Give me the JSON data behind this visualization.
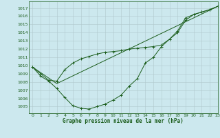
{
  "title": "Graphe pression niveau de la mer (hPa)",
  "background_color": "#cce8ee",
  "grid_color": "#b0c8cc",
  "line_color": "#1a5c1a",
  "text_color": "#1a5c1a",
  "xlim": [
    -0.5,
    23
  ],
  "ylim": [
    1004.2,
    1017.8
  ],
  "yticks": [
    1005,
    1006,
    1007,
    1008,
    1009,
    1010,
    1011,
    1012,
    1013,
    1014,
    1015,
    1016,
    1017
  ],
  "xticks": [
    0,
    1,
    2,
    3,
    4,
    5,
    6,
    7,
    8,
    9,
    10,
    11,
    12,
    13,
    14,
    15,
    16,
    17,
    18,
    19,
    20,
    21,
    22,
    23
  ],
  "series1_x": [
    0,
    1,
    2,
    3,
    4,
    5,
    6,
    7,
    8,
    9,
    10,
    11,
    12,
    13,
    14,
    15,
    16,
    17,
    18,
    19,
    20,
    21,
    22,
    23
  ],
  "series1_y": [
    1009.8,
    1008.7,
    1008.1,
    1007.2,
    1006.1,
    1005.1,
    1004.8,
    1004.7,
    1005.0,
    1005.3,
    1005.8,
    1006.4,
    1007.5,
    1008.4,
    1010.3,
    1011.0,
    1012.3,
    1013.2,
    1014.2,
    1015.8,
    1016.2,
    1016.5,
    1016.8,
    1017.2
  ],
  "series2_x": [
    0,
    1,
    2,
    3,
    4,
    5,
    6,
    7,
    8,
    9,
    10,
    11,
    12,
    13,
    14,
    15,
    16,
    17,
    18,
    19,
    20,
    21,
    22,
    23
  ],
  "series2_y": [
    1009.8,
    1009.0,
    1008.2,
    1008.1,
    1009.5,
    1010.3,
    1010.8,
    1011.1,
    1011.4,
    1011.6,
    1011.7,
    1011.8,
    1012.0,
    1012.1,
    1012.2,
    1012.3,
    1012.5,
    1013.2,
    1014.0,
    1015.5,
    1016.2,
    1016.5,
    1016.8,
    1017.2
  ],
  "series3_x": [
    0,
    3,
    23
  ],
  "series3_y": [
    1009.8,
    1007.8,
    1017.2
  ]
}
